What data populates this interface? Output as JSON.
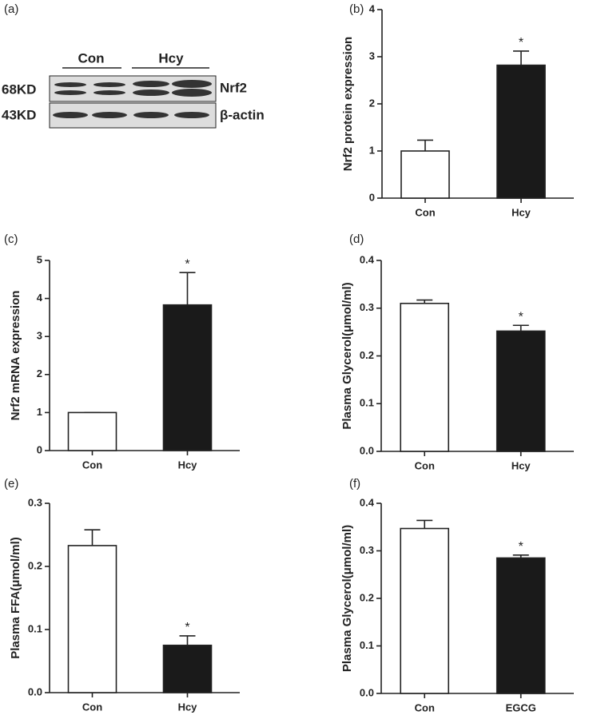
{
  "blot": {
    "label": "(a)",
    "groups": [
      "Con",
      "Hcy"
    ],
    "sizes": [
      "68KD",
      "43KD"
    ],
    "proteins": [
      "Nrf2",
      "β-actin"
    ]
  },
  "chart_data": [
    {
      "type": "bar",
      "label": "(b)",
      "ylabel": "Nrf2 protein expression",
      "categories": [
        "Con",
        "Hcy"
      ],
      "values": [
        1.0,
        2.82
      ],
      "errors": [
        0.23,
        0.3
      ],
      "significance": [
        null,
        "*"
      ],
      "colors": [
        "#ffffff",
        "#1a1a1a"
      ],
      "ylim": [
        0,
        4
      ],
      "yticks": [
        0,
        1,
        2,
        3,
        4
      ]
    },
    {
      "type": "bar",
      "label": "(c)",
      "ylabel": "Nrf2 mRNA expression",
      "categories": [
        "Con",
        "Hcy"
      ],
      "values": [
        1.0,
        3.83
      ],
      "errors": [
        0,
        0.85
      ],
      "significance": [
        null,
        "*"
      ],
      "colors": [
        "#ffffff",
        "#1a1a1a"
      ],
      "ylim": [
        0,
        5
      ],
      "yticks": [
        0,
        1,
        2,
        3,
        4,
        5
      ]
    },
    {
      "type": "bar",
      "label": "(d)",
      "ylabel": "Plasma Glycerol(μmol/ml)",
      "categories": [
        "Con",
        "Hcy"
      ],
      "values": [
        0.31,
        0.252
      ],
      "errors": [
        0.007,
        0.012
      ],
      "significance": [
        null,
        "*"
      ],
      "colors": [
        "#ffffff",
        "#1a1a1a"
      ],
      "ylim": [
        0,
        0.4
      ],
      "yticks": [
        {
          "value": 0,
          "label": "0.0"
        },
        0.1,
        0.2,
        0.3,
        0.4
      ]
    },
    {
      "type": "bar",
      "label": "(e)",
      "ylabel": "Plasma FFA(μmol/ml)",
      "categories": [
        "Con",
        "Hcy"
      ],
      "values": [
        0.233,
        0.075
      ],
      "errors": [
        0.025,
        0.015
      ],
      "significance": [
        null,
        "*"
      ],
      "colors": [
        "#ffffff",
        "#1a1a1a"
      ],
      "ylim": [
        0,
        0.3
      ],
      "yticks": [
        {
          "value": 0,
          "label": "0.0"
        },
        0.1,
        0.2,
        0.3
      ]
    },
    {
      "type": "bar",
      "label": "(f)",
      "ylabel": "Plasma Glycerol(μmol/ml)",
      "categories": [
        "Con",
        "EGCG"
      ],
      "values": [
        0.347,
        0.285
      ],
      "errors": [
        0.017,
        0.006
      ],
      "significance": [
        null,
        "*"
      ],
      "colors": [
        "#ffffff",
        "#1a1a1a"
      ],
      "ylim": [
        0,
        0.4
      ],
      "yticks": [
        {
          "value": 0,
          "label": "0.0"
        },
        0.1,
        0.2,
        0.3,
        0.4
      ]
    }
  ]
}
